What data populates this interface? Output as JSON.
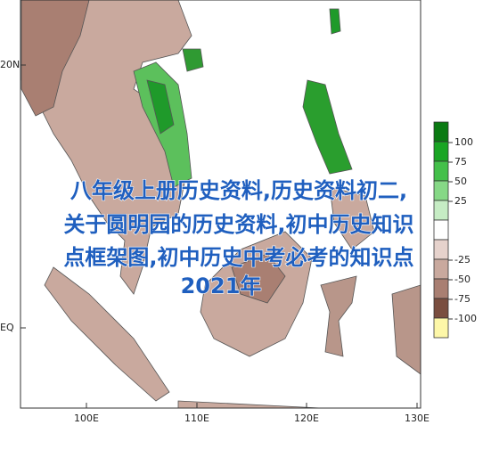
{
  "map": {
    "lat_labels": [
      "20N",
      "EQ"
    ],
    "lon_labels": [
      "100E",
      "110E",
      "120E",
      "130E"
    ],
    "legend_labels": [
      "100",
      "75",
      "50",
      "25",
      "-25",
      "-50",
      "-75",
      "-100"
    ]
  },
  "overlay": {
    "lines": [
      "八年级上册历史资料,历史资料初二,",
      "关于圆明园的历史资料,初中历史知识",
      "点框架图,初中历史中考必考的知识点",
      "2021年"
    ]
  }
}
